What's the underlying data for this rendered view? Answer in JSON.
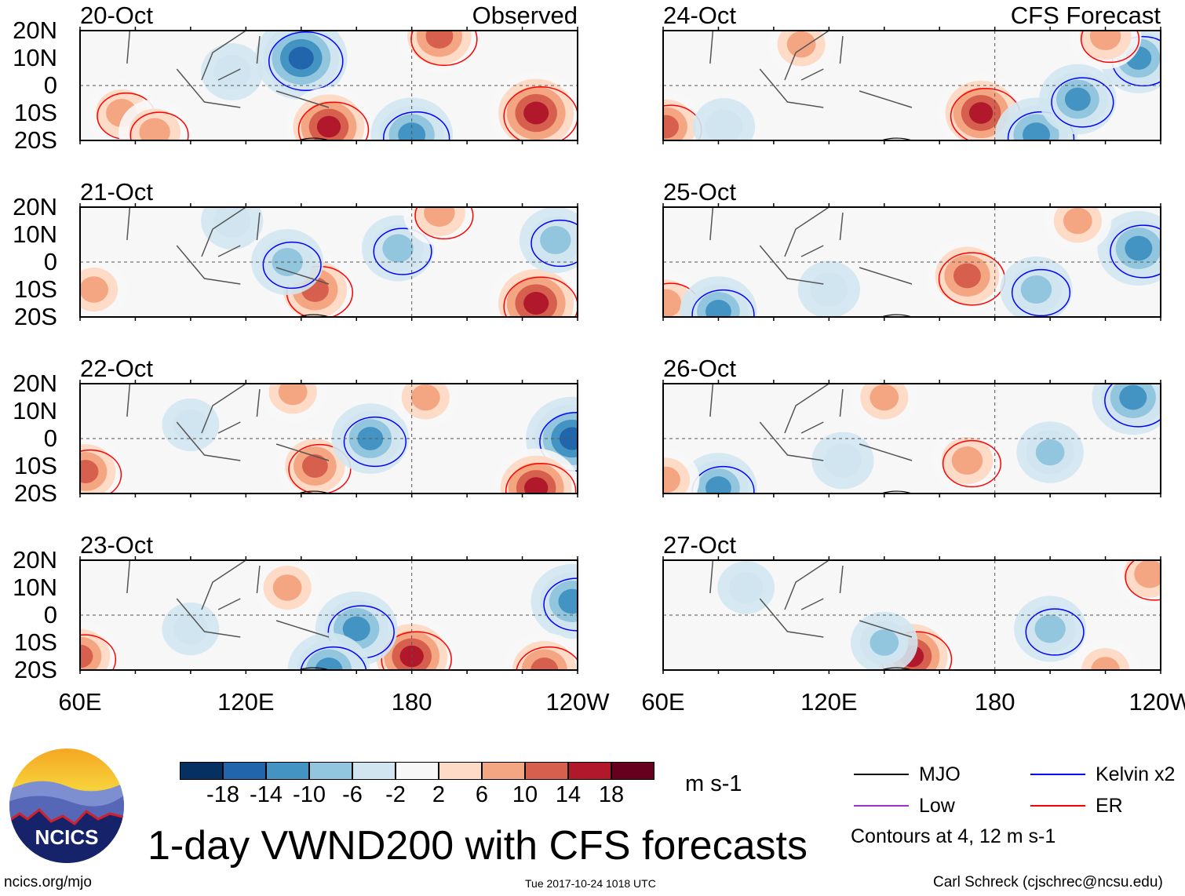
{
  "title": "1-day VWND200 with CFS forecasts",
  "timestamp": "Tue 2017-10-24 1018 UTC",
  "site": "ncics.org/mjo",
  "credit": "Carl Schreck (cjschrec@ncsu.edu)",
  "logo_text": "NCICS",
  "chart_data": {
    "type": "heatmap",
    "variable": "200-hPa meridional wind anomaly",
    "units": "m s-1",
    "lat_range": [
      -20,
      20
    ],
    "lon_range": [
      60,
      240
    ],
    "lat_ticks": [
      "20N",
      "10N",
      "0",
      "10S",
      "20S"
    ],
    "lon_ticks": [
      "60E",
      "120E",
      "180",
      "120W"
    ],
    "columns": [
      {
        "label": "Observed",
        "panels": [
          {
            "date": "20-Oct",
            "features": [
              [
                140,
                10,
                -18
              ],
              [
                150,
                -15,
                16
              ],
              [
                225,
                -10,
                18
              ],
              [
                75,
                -10,
                10
              ],
              [
                190,
                18,
                14
              ],
              [
                180,
                -18,
                -14
              ],
              [
                87,
                -17,
                10
              ],
              [
                115,
                5,
                -6
              ]
            ]
          },
          {
            "date": "21-Oct",
            "features": [
              [
                225,
                -15,
                18
              ],
              [
                145,
                -10,
                14
              ],
              [
                135,
                0,
                -10
              ],
              [
                175,
                5,
                -10
              ],
              [
                190,
                18,
                10
              ],
              [
                65,
                -10,
                8
              ],
              [
                232,
                8,
                -10
              ],
              [
                115,
                15,
                -6
              ]
            ]
          },
          {
            "date": "22-Oct",
            "features": [
              [
                238,
                0,
                -18
              ],
              [
                225,
                -18,
                16
              ],
              [
                145,
                -10,
                12
              ],
              [
                165,
                0,
                -12
              ],
              [
                62,
                -12,
                12
              ],
              [
                137,
                17,
                8
              ],
              [
                185,
                15,
                8
              ],
              [
                100,
                5,
                -4
              ]
            ]
          },
          {
            "date": "23-Oct",
            "features": [
              [
                238,
                5,
                -14
              ],
              [
                180,
                -15,
                16
              ],
              [
                160,
                -5,
                -14
              ],
              [
                135,
                10,
                8
              ],
              [
                228,
                -20,
                14
              ],
              [
                60,
                -15,
                12
              ],
              [
                150,
                -20,
                -14
              ],
              [
                100,
                -5,
                -4
              ]
            ]
          }
        ]
      },
      {
        "label": "CFS Forecast",
        "panels": [
          {
            "date": "24-Oct",
            "features": [
              [
                175,
                -10,
                16
              ],
              [
                195,
                -18,
                -14
              ],
              [
                210,
                -5,
                -12
              ],
              [
                232,
                10,
                -12
              ],
              [
                61,
                -15,
                12
              ],
              [
                110,
                15,
                8
              ],
              [
                220,
                18,
                10
              ],
              [
                82,
                -15,
                -6
              ]
            ]
          },
          {
            "date": "25-Oct",
            "features": [
              [
                170,
                -5,
                14
              ],
              [
                232,
                5,
                -14
              ],
              [
                61,
                -15,
                10
              ],
              [
                80,
                -18,
                -12
              ],
              [
                210,
                15,
                8
              ],
              [
                195,
                -10,
                -10
              ],
              [
                120,
                -10,
                -6
              ]
            ]
          },
          {
            "date": "26-Oct",
            "features": [
              [
                170,
                -8,
                10
              ],
              [
                230,
                15,
                -14
              ],
              [
                80,
                -18,
                -12
              ],
              [
                200,
                -5,
                -8
              ],
              [
                61,
                -15,
                8
              ],
              [
                140,
                15,
                8
              ],
              [
                125,
                -8,
                -6
              ]
            ]
          },
          {
            "date": "27-Oct",
            "features": [
              [
                150,
                -15,
                16
              ],
              [
                200,
                -5,
                -10
              ],
              [
                140,
                -10,
                -8
              ],
              [
                236,
                15,
                10
              ],
              [
                220,
                -20,
                8
              ],
              [
                90,
                10,
                -4
              ]
            ]
          }
        ]
      }
    ],
    "colorbar": {
      "levels": [
        "-18",
        "-14",
        "-10",
        "-6",
        "-2",
        "2",
        "6",
        "10",
        "14",
        "18"
      ],
      "colors": [
        "#053061",
        "#2166ac",
        "#4393c3",
        "#92c5de",
        "#d1e5f0",
        "#f7f7f7",
        "#fddbc7",
        "#f4a582",
        "#d6604d",
        "#b2182b",
        "#67001f"
      ],
      "units": "m s-1"
    },
    "legend": {
      "items": [
        {
          "label": "MJO",
          "color": "#000000"
        },
        {
          "label": "Kelvin x2",
          "color": "#0000ff"
        },
        {
          "label": "Low",
          "color": "#9933cc"
        },
        {
          "label": "ER",
          "color": "#ff0000"
        }
      ],
      "note": "Contours at 4, 12 m s-1"
    }
  }
}
